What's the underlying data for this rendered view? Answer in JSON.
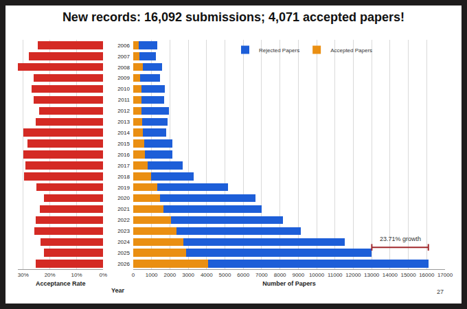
{
  "chart_data": [
    {
      "type": "bar",
      "orientation": "horizontal",
      "categories": [
        "2006",
        "2007",
        "2008",
        "2009",
        "2010",
        "2011",
        "2012",
        "2013",
        "2014",
        "2015",
        "2016",
        "2017",
        "2018",
        "2019",
        "2020",
        "2021",
        "2022",
        "2023",
        "2024",
        "2025",
        "2026"
      ],
      "values": [
        24.5,
        27.8,
        31.9,
        26.2,
        26.8,
        26.0,
        24.1,
        25.2,
        29.9,
        28.4,
        30.0,
        29.2,
        29.7,
        25.1,
        22.1,
        23.7,
        25.3,
        25.8,
        23.6,
        22.1,
        25.3
      ],
      "color": "#d42a24",
      "xlabel": "Acceptance Rate",
      "xlim": [
        32,
        0
      ],
      "xticks": [
        {
          "value": 30,
          "label": "30%"
        },
        {
          "value": 20,
          "label": "20%"
        },
        {
          "value": 10,
          "label": "10%"
        },
        {
          "value": 0,
          "label": "0%"
        }
      ],
      "grid": true
    },
    {
      "type": "bar",
      "orientation": "horizontal",
      "stacked": true,
      "title": "New records: 16,092 submissions; 4,071 accepted papers!",
      "categories": [
        "2006",
        "2007",
        "2008",
        "2009",
        "2010",
        "2011",
        "2012",
        "2013",
        "2014",
        "2015",
        "2016",
        "2017",
        "2018",
        "2019",
        "2020",
        "2021",
        "2022",
        "2023",
        "2024",
        "2025",
        "2026"
      ],
      "ylabel": "Year",
      "xlabel": "Number of Papers",
      "series": [
        {
          "name": "Accepted Papers",
          "color": "#ea8f12",
          "values": [
            318,
            347,
            508,
            384,
            462,
            436,
            466,
            472,
            540,
            602,
            643,
            783,
            979,
            1294,
            1470,
            1660,
            2064,
            2359,
            2719,
            2878,
            4071
          ]
        },
        {
          "name": "Rejected Papers",
          "color": "#1d5ed8",
          "values": [
            982,
            903,
            1085,
            1080,
            1262,
            1241,
            1467,
            1398,
            1267,
            1521,
            1502,
            1897,
            2321,
            3866,
            5186,
            5355,
            6097,
            6796,
            8813,
            10130,
            12021
          ]
        }
      ],
      "xlim": [
        0,
        17000
      ],
      "xticks": [
        0,
        1000,
        2000,
        3000,
        4000,
        5000,
        6000,
        7000,
        8000,
        9000,
        10000,
        11000,
        12000,
        13000,
        14000,
        15000,
        16000,
        17000
      ],
      "grid": true,
      "legend": "top",
      "annotations": [
        {
          "text": "23.71% growth"
        }
      ]
    }
  ],
  "slide_number": "27"
}
